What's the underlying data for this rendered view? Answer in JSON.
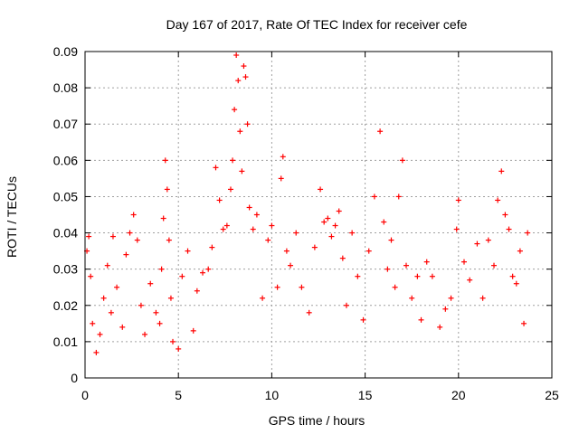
{
  "chart_data": {
    "type": "scatter",
    "title": "Day 167 of 2017, Rate Of TEC Index for receiver cefe",
    "xlabel": "GPS time / hours",
    "ylabel": "ROTI / TECUs",
    "xlim": [
      0,
      25
    ],
    "ylim": [
      0,
      0.09
    ],
    "xticks": [
      "0",
      "5",
      "10",
      "15",
      "20",
      "25"
    ],
    "yticks": [
      "0",
      "0.01",
      "0.02",
      "0.03",
      "0.04",
      "0.05",
      "0.06",
      "0.07",
      "0.08",
      "0.09"
    ],
    "grid": true,
    "marker": "+",
    "color": "#ff0000",
    "series": [
      {
        "name": "ROTI",
        "x": [
          0.1,
          0.2,
          0.3,
          0.4,
          0.6,
          0.8,
          1.0,
          1.2,
          1.4,
          1.5,
          1.7,
          2.0,
          2.2,
          2.4,
          2.6,
          2.8,
          3.0,
          3.2,
          3.5,
          3.8,
          4.0,
          4.1,
          4.2,
          4.3,
          4.4,
          4.5,
          4.6,
          4.7,
          5.0,
          5.2,
          5.5,
          5.8,
          6.0,
          6.3,
          6.6,
          6.8,
          7.0,
          7.2,
          7.4,
          7.6,
          7.8,
          7.9,
          8.0,
          8.1,
          8.2,
          8.3,
          8.4,
          8.5,
          8.6,
          8.7,
          8.8,
          9.0,
          9.2,
          9.5,
          9.8,
          10.0,
          10.3,
          10.5,
          10.6,
          10.8,
          11.0,
          11.3,
          11.6,
          12.0,
          12.3,
          12.6,
          12.8,
          13.0,
          13.2,
          13.4,
          13.6,
          13.8,
          14.0,
          14.3,
          14.6,
          14.9,
          15.2,
          15.5,
          15.8,
          16.0,
          16.2,
          16.4,
          16.6,
          16.8,
          17.0,
          17.2,
          17.5,
          17.8,
          18.0,
          18.3,
          18.6,
          19.0,
          19.3,
          19.6,
          19.9,
          20.0,
          20.3,
          20.6,
          21.0,
          21.3,
          21.6,
          21.9,
          22.1,
          22.3,
          22.5,
          22.7,
          22.9,
          23.1,
          23.3,
          23.5,
          23.7
        ],
        "y": [
          0.035,
          0.039,
          0.028,
          0.015,
          0.007,
          0.012,
          0.022,
          0.031,
          0.018,
          0.039,
          0.025,
          0.014,
          0.034,
          0.04,
          0.045,
          0.038,
          0.02,
          0.012,
          0.026,
          0.018,
          0.015,
          0.03,
          0.044,
          0.06,
          0.052,
          0.038,
          0.022,
          0.01,
          0.008,
          0.028,
          0.035,
          0.013,
          0.024,
          0.029,
          0.03,
          0.036,
          0.058,
          0.049,
          0.041,
          0.042,
          0.052,
          0.06,
          0.074,
          0.089,
          0.082,
          0.068,
          0.057,
          0.086,
          0.083,
          0.07,
          0.047,
          0.041,
          0.045,
          0.022,
          0.038,
          0.042,
          0.025,
          0.055,
          0.061,
          0.035,
          0.031,
          0.04,
          0.025,
          0.018,
          0.036,
          0.052,
          0.043,
          0.044,
          0.039,
          0.042,
          0.046,
          0.033,
          0.02,
          0.04,
          0.028,
          0.016,
          0.035,
          0.05,
          0.068,
          0.043,
          0.03,
          0.038,
          0.025,
          0.05,
          0.06,
          0.031,
          0.022,
          0.028,
          0.016,
          0.032,
          0.028,
          0.014,
          0.019,
          0.022,
          0.041,
          0.049,
          0.032,
          0.027,
          0.037,
          0.022,
          0.038,
          0.031,
          0.049,
          0.057,
          0.045,
          0.041,
          0.028,
          0.026,
          0.035,
          0.015,
          0.04
        ]
      }
    ]
  }
}
